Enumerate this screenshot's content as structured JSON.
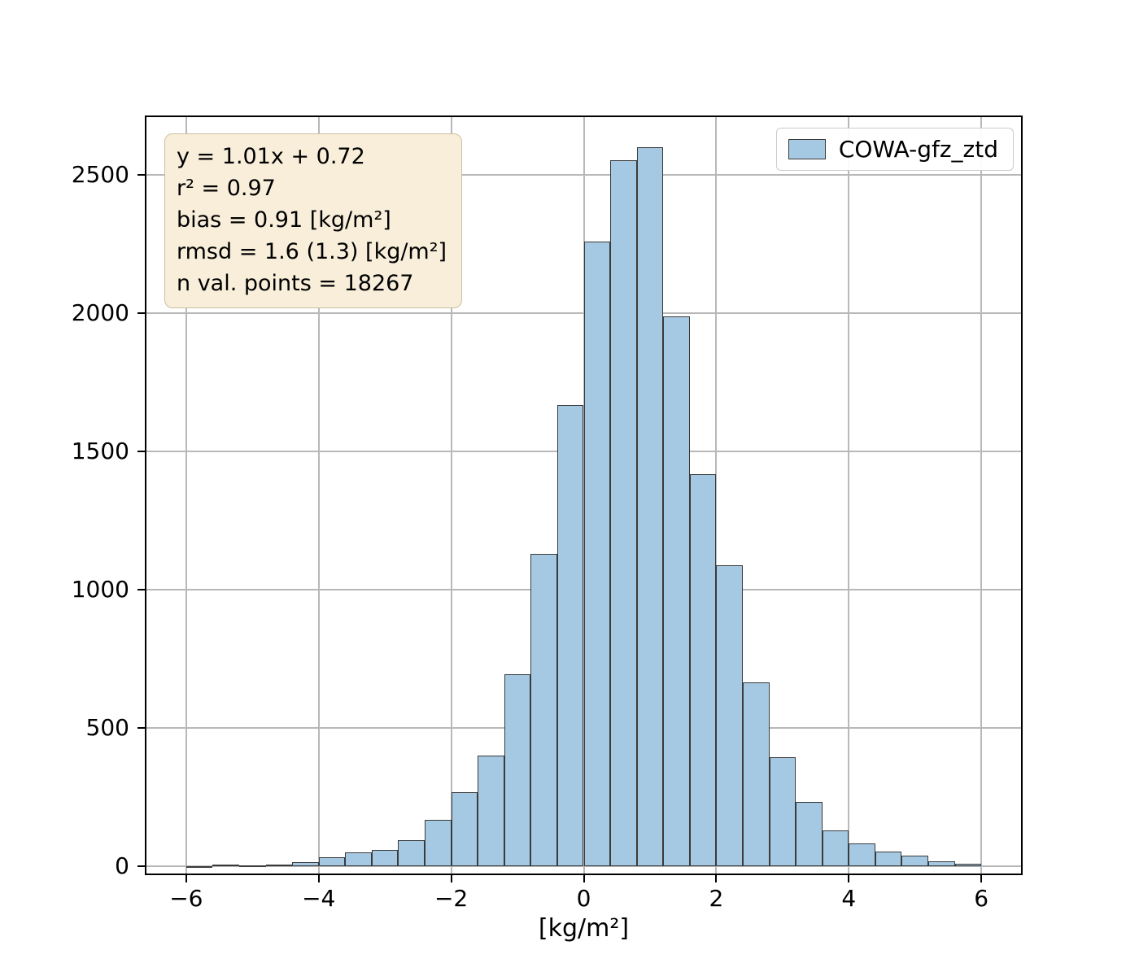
{
  "chart_data": {
    "type": "bar",
    "subtype": "histogram",
    "title": "",
    "xlabel": "[kg/m²]",
    "ylabel": "",
    "xlim": [
      -6.6,
      6.6
    ],
    "ylim": [
      -25,
      2710
    ],
    "grid": true,
    "bar_color": "#a5c9e3",
    "bar_edge_color": "#3a3a3a",
    "grid_color": "#b8b8b8",
    "bin_start": -6.0,
    "bin_width": 0.4,
    "counts": [
      2,
      8,
      5,
      8,
      15,
      35,
      50,
      60,
      95,
      170,
      270,
      400,
      695,
      1130,
      1670,
      2260,
      2555,
      2600,
      1990,
      1420,
      1090,
      665,
      395,
      235,
      130,
      85,
      55,
      40,
      20,
      10
    ],
    "x_ticks": [
      {
        "value": -6,
        "label": "−6"
      },
      {
        "value": -4,
        "label": "−4"
      },
      {
        "value": -2,
        "label": "−2"
      },
      {
        "value": 0,
        "label": "0"
      },
      {
        "value": 2,
        "label": "2"
      },
      {
        "value": 4,
        "label": "4"
      },
      {
        "value": 6,
        "label": "6"
      }
    ],
    "y_ticks": [
      {
        "value": 0,
        "label": "0"
      },
      {
        "value": 500,
        "label": "500"
      },
      {
        "value": 1000,
        "label": "1000"
      },
      {
        "value": 1500,
        "label": "1500"
      },
      {
        "value": 2000,
        "label": "2000"
      },
      {
        "value": 2500,
        "label": "2500"
      }
    ],
    "legend": {
      "position": "upper right",
      "entries": [
        {
          "label": "COWA-gfz_ztd",
          "swatch_color": "#a5c9e3",
          "swatch_edge": "#3a3a3a"
        }
      ]
    },
    "annotation_box": {
      "bg": "#f8eeda",
      "border": "#cdbf9e",
      "lines": [
        "y = 1.01x + 0.72",
        "r² = 0.97",
        "bias = 0.91 [kg/m²]",
        "rmsd = 1.6 (1.3) [kg/m²]",
        "n val. points = 18267"
      ]
    }
  }
}
